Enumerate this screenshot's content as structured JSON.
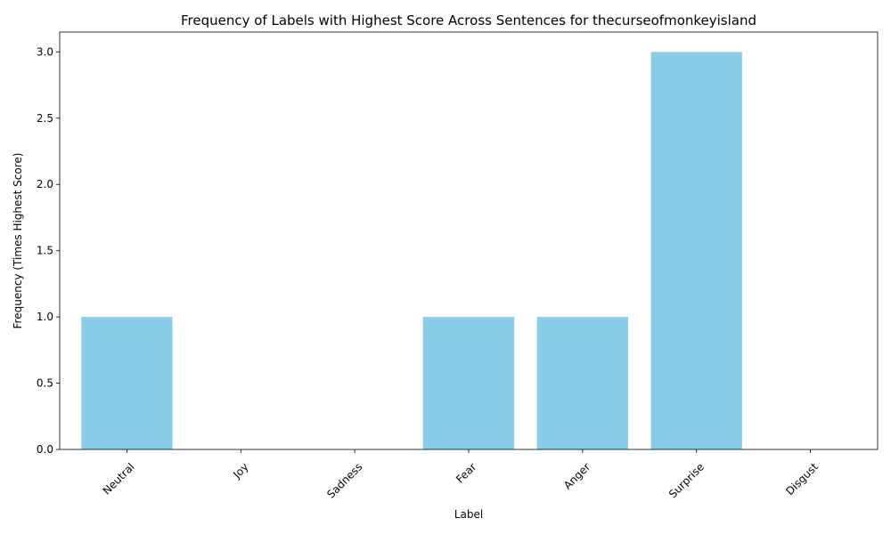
{
  "chart_data": {
    "type": "bar",
    "title": "Frequency of Labels with Highest Score Across Sentences for thecurseofmonkeyisland",
    "xlabel": "Label",
    "ylabel": "Frequency (Times Highest Score)",
    "categories": [
      "Neutral",
      "Joy",
      "Sadness",
      "Fear",
      "Anger",
      "Surprise",
      "Disgust"
    ],
    "values": [
      1,
      0,
      0,
      1,
      1,
      3,
      0
    ],
    "ylim": [
      0,
      3.15
    ],
    "yticks": [
      0.0,
      0.5,
      1.0,
      1.5,
      2.0,
      2.5,
      3.0
    ],
    "ytick_labels": [
      "0.0",
      "0.5",
      "1.0",
      "1.5",
      "2.0",
      "2.5",
      "3.0"
    ],
    "bar_color": "#87CEEB",
    "grid": false,
    "legend": false
  }
}
